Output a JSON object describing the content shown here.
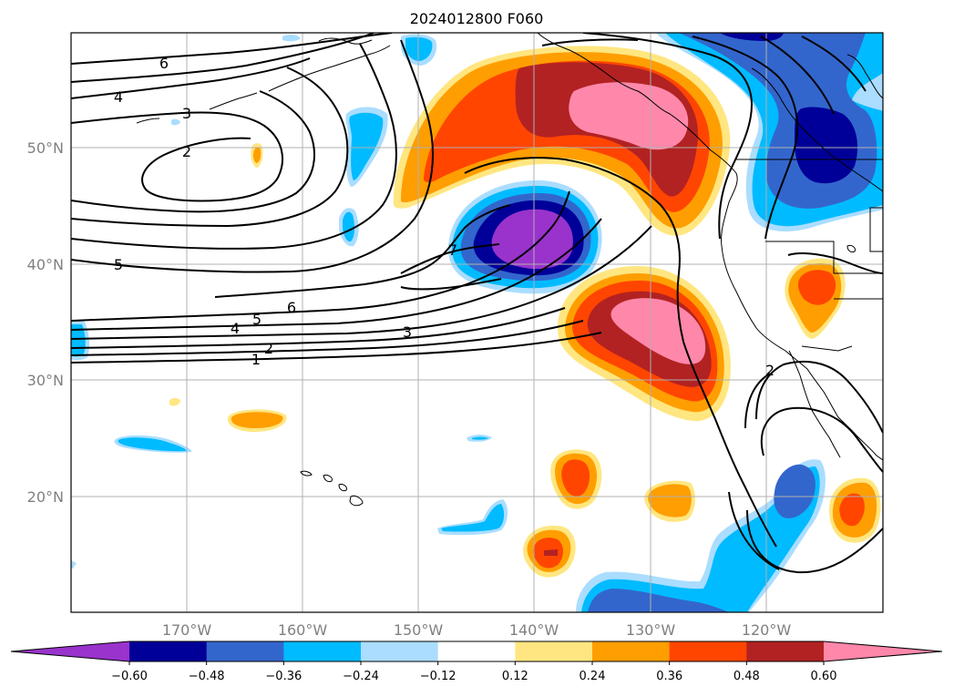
{
  "title": "2024012800 F060",
  "lat_labels": [
    "50°N",
    "40°N",
    "30°N",
    "20°N"
  ],
  "lon_labels": [
    "170°W",
    "160°W",
    "150°W",
    "140°W",
    "130°W",
    "120°W"
  ],
  "colorbar": {
    "ticks": [
      "−0.60",
      "−0.48",
      "−0.36",
      "−0.24",
      "−0.12",
      "0.12",
      "0.24",
      "0.36",
      "0.48",
      "0.60"
    ],
    "colors": [
      "#9933cc",
      "#000099",
      "#3366cc",
      "#00bbff",
      "#aaddff",
      "#ffffff",
      "#ffe680",
      "#ff9e00",
      "#ff4500",
      "#b22222",
      "#ff88aa"
    ]
  },
  "contour_labels": [
    "6",
    "4",
    "3",
    "2",
    "5",
    "7",
    "6",
    "5",
    "4",
    "3",
    "2",
    "1",
    "2"
  ]
}
